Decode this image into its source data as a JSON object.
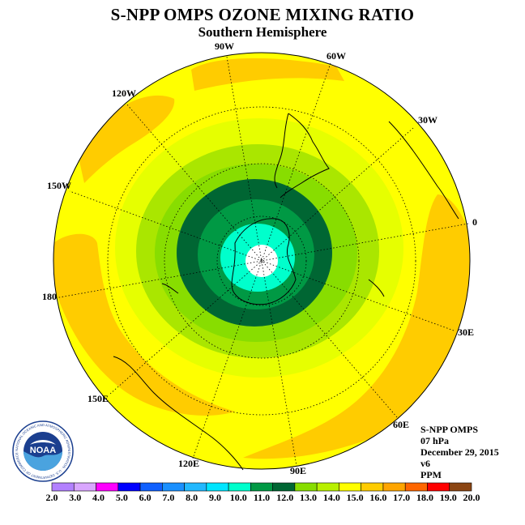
{
  "header": {
    "title": "S-NPP OMPS OZONE MIXING RATIO",
    "subtitle": "Southern Hemisphere"
  },
  "map": {
    "projection": "south-polar-stereographic",
    "longitude_labels": [
      "90W",
      "60W",
      "30W",
      "0",
      "30E",
      "60E",
      "90E",
      "120E",
      "150E",
      "180",
      "150W",
      "120W"
    ],
    "colors": {
      "ocean_background": "#ffff00",
      "band_14": "#e6ff00",
      "band_13": "#aae600",
      "band_12": "#88dd00",
      "band_11": "#009944",
      "band_10": "#006633",
      "band_9": "#00ffcc",
      "pole_white": "#ffffff",
      "high_orange": "#ffcc00",
      "higher_orange": "#f5b800"
    }
  },
  "info": {
    "instrument": "S-NPP OMPS",
    "pressure": "07 hPa",
    "date": "December 29, 2015",
    "version": "v6",
    "units": "PPM"
  },
  "colorbar": {
    "labels": [
      "2.0",
      "3.0",
      "4.0",
      "5.0",
      "6.0",
      "7.0",
      "8.0",
      "9.0",
      "10.0",
      "11.0",
      "12.0",
      "13.0",
      "14.0",
      "15.0",
      "16.0",
      "17.0",
      "18.0",
      "19.0",
      "20.0"
    ],
    "colors": [
      "#b280ff",
      "#d9a6ff",
      "#ff00ff",
      "#0000ff",
      "#1060ff",
      "#1a90ff",
      "#22b8ff",
      "#00e5ff",
      "#00ffcc",
      "#009944",
      "#006633",
      "#88dd00",
      "#b8f000",
      "#ffff00",
      "#ffcc00",
      "#ffa500",
      "#ff6600",
      "#ff0000",
      "#8b4513"
    ]
  },
  "logo": {
    "text": "NOAA",
    "ring_text": "NATIONAL OCEANIC AND ATMOSPHERIC ADMINISTRATION · U.S. DEPARTMENT OF COMMERCE"
  }
}
